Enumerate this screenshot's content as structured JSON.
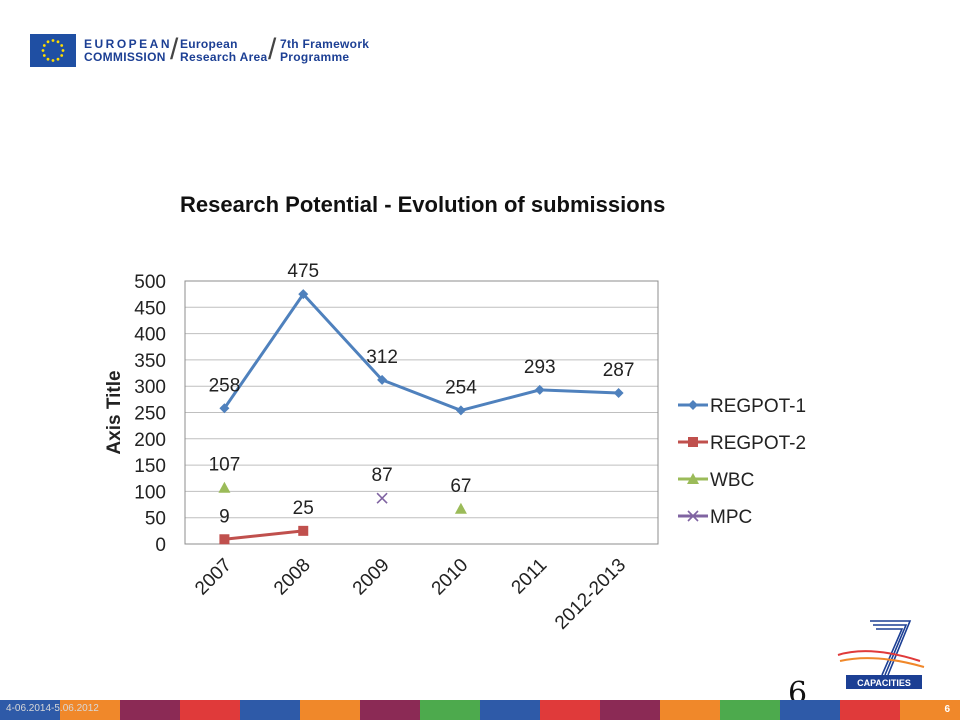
{
  "header": {
    "org_line1": "EUROPEAN",
    "org_line2": "COMMISSION",
    "area_line1": "European",
    "area_line2": "Research Area",
    "program_line1": "7th Framework",
    "program_line2": "Programme"
  },
  "chart_data": {
    "type": "line",
    "title": "Research Potential - Evolution of submissions",
    "ylabel": "Axis Title",
    "xlabel": "",
    "categories": [
      "2007",
      "2008",
      "2009",
      "2010",
      "2011",
      "2012-2013"
    ],
    "ylim": [
      0,
      500
    ],
    "yticks": [
      0,
      50,
      100,
      150,
      200,
      250,
      300,
      350,
      400,
      450,
      500
    ],
    "grid": true,
    "legend_position": "right",
    "series": [
      {
        "name": "REGPOT-1",
        "color": "#4f81bd",
        "marker": "diamond",
        "values": [
          258,
          475,
          312,
          254,
          293,
          287
        ]
      },
      {
        "name": "REGPOT-2",
        "color": "#c0504d",
        "marker": "square",
        "values": [
          9,
          25,
          null,
          null,
          null,
          null
        ]
      },
      {
        "name": "WBC",
        "color": "#9bbb59",
        "marker": "triangle",
        "values": [
          107,
          null,
          null,
          67,
          null,
          null
        ]
      },
      {
        "name": "MPC",
        "color": "#8064a2",
        "marker": "x",
        "values": [
          null,
          null,
          87,
          null,
          null,
          null
        ]
      }
    ]
  },
  "slide_number": "6",
  "logo": {
    "label": "CAPACITIES",
    "color": "#1c3f94"
  },
  "footer": {
    "date": "4-06.2014-5.06.2012",
    "page": "6",
    "colors": [
      "#2e5aa8",
      "#f0882a",
      "#8b2a55",
      "#e03a3a",
      "#2e5aa8",
      "#f0882a",
      "#8b2a55",
      "#4daa4d",
      "#2e5aa8",
      "#e03a3a",
      "#8b2a55",
      "#f0882a",
      "#4daa4d",
      "#2e5aa8",
      "#e03a3a",
      "#f0882a"
    ]
  }
}
